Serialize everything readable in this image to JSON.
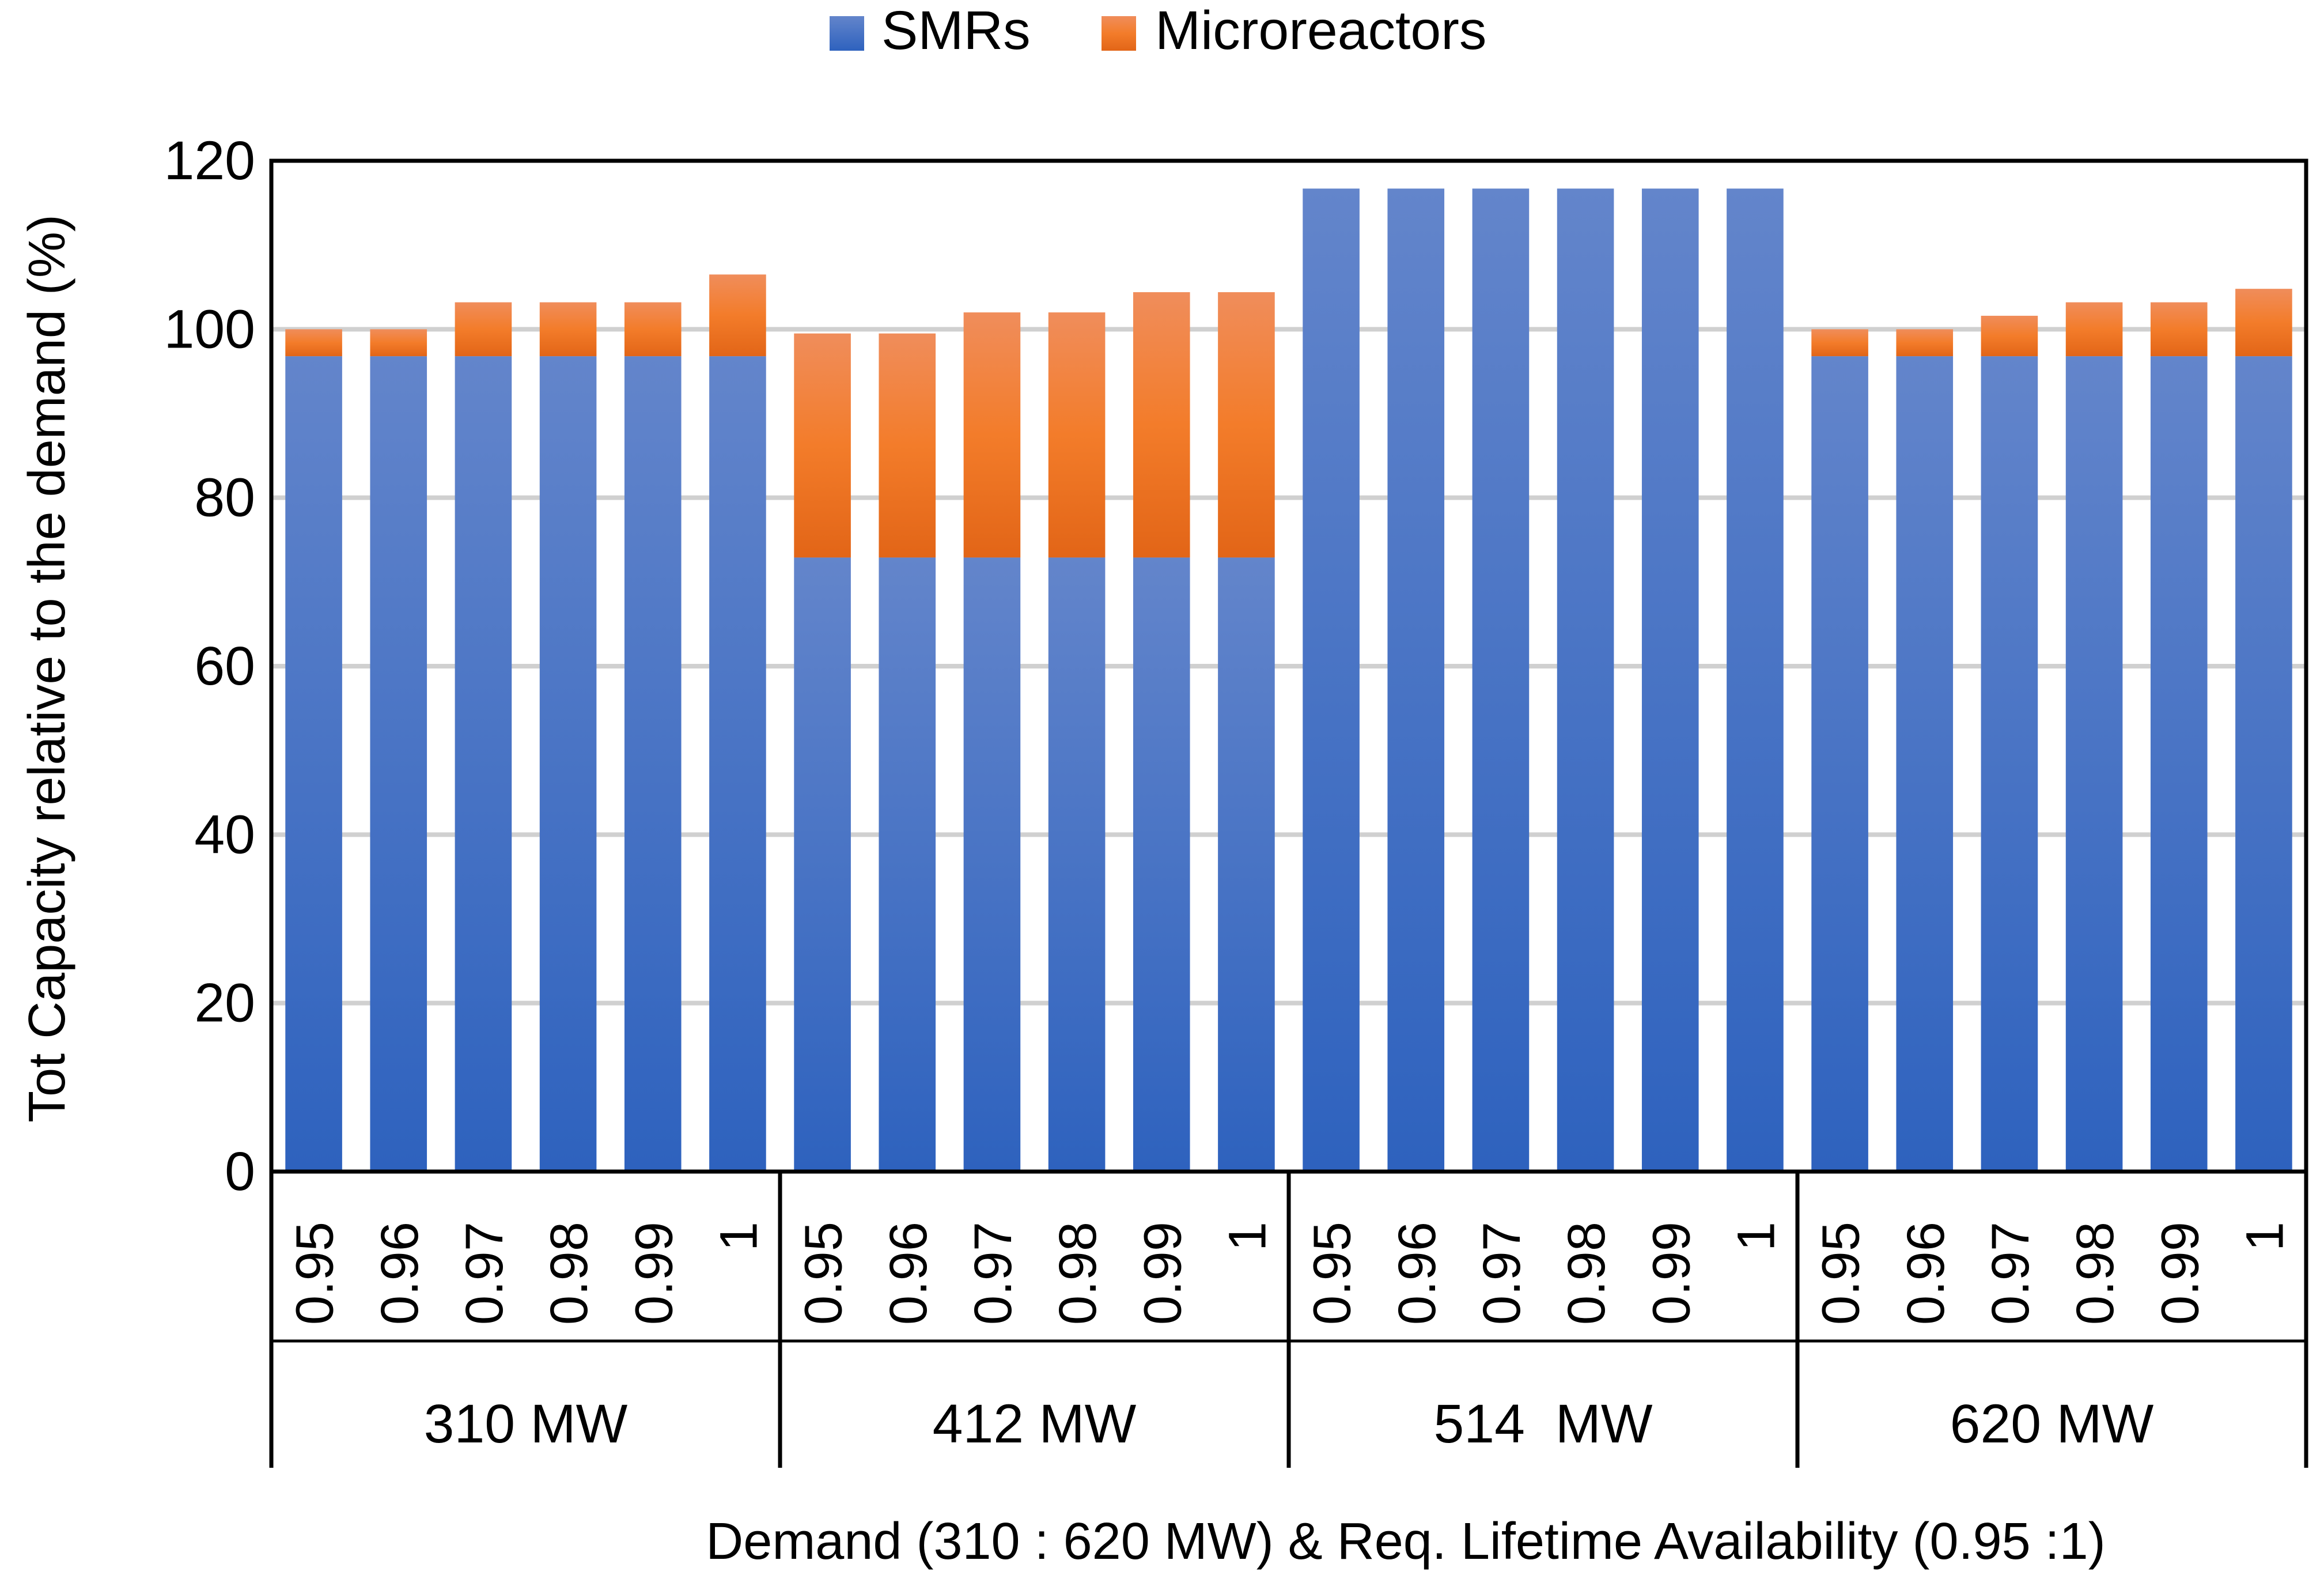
{
  "chart_data": {
    "type": "bar",
    "stacked": true,
    "title": "",
    "xlabel": "Demand (310 : 620 MW) & Req. Lifetime Availability (0.95 :1)",
    "ylabel": "Tot Capacity relative to the demand (%)",
    "ylim": [
      0,
      120
    ],
    "yticks": [
      0,
      20,
      40,
      60,
      80,
      100,
      120
    ],
    "grid": true,
    "legend_placement": "top-center",
    "groups": [
      "310 MW",
      "412 MW",
      "514  MW",
      "620 MW"
    ],
    "subcategories": [
      "0.95",
      "0.96",
      "0.97",
      "0.98",
      "0.99",
      "1"
    ],
    "series": [
      {
        "name": "SMRs",
        "color": "#4472C4",
        "values": [
          96.8,
          96.8,
          96.8,
          96.8,
          96.8,
          96.8,
          72.9,
          72.9,
          72.9,
          72.9,
          72.9,
          72.9,
          116.7,
          116.7,
          116.7,
          116.7,
          116.7,
          116.7,
          96.8,
          96.8,
          96.8,
          96.8,
          96.8,
          96.8
        ]
      },
      {
        "name": "Microreactors",
        "color": "#ED7D31",
        "values": [
          3.2,
          3.2,
          6.4,
          6.4,
          6.4,
          9.7,
          26.6,
          26.6,
          29.1,
          29.1,
          31.5,
          31.5,
          0,
          0,
          0,
          0,
          0,
          0,
          3.2,
          3.2,
          4.8,
          6.4,
          6.4,
          8.0
        ]
      }
    ]
  }
}
